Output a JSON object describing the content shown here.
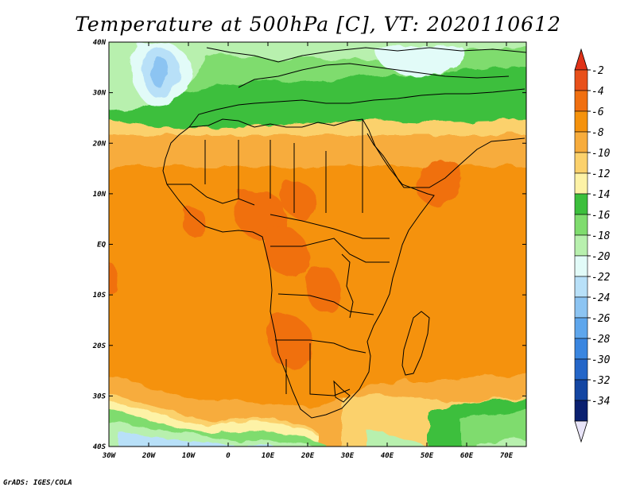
{
  "title": "Temperature at 500hPa [C], VT: 2020110612",
  "credit": "GrADS: IGES/COLA",
  "lat_ticks": [
    "40N",
    "30N",
    "20N",
    "10N",
    "EQ",
    "10S",
    "20S",
    "30S",
    "40S"
  ],
  "lon_ticks": [
    "30W",
    "20W",
    "10W",
    "0",
    "10E",
    "20E",
    "30E",
    "40E",
    "50E",
    "60E",
    "70E"
  ],
  "colorbar": {
    "labels": [
      "-2",
      "-4",
      "-6",
      "-8",
      "-10",
      "-12",
      "-14",
      "-16",
      "-18",
      "-20",
      "-22",
      "-24",
      "-26",
      "-28",
      "-30",
      "-32",
      "-34"
    ],
    "colors": [
      "#e8501a",
      "#f06f10",
      "#f5920c",
      "#f7ac3c",
      "#fbd16c",
      "#fdf2a6",
      "#3cbf3c",
      "#7fdc6e",
      "#b8f0ae",
      "#e2fbf8",
      "#b8e0f8",
      "#8cc4f2",
      "#5ea6ec",
      "#3a86e0",
      "#2466c8",
      "#1446a2",
      "#0a2070"
    ],
    "top_color": "#e03218",
    "bottom_color": "#e8e4f8"
  }
}
